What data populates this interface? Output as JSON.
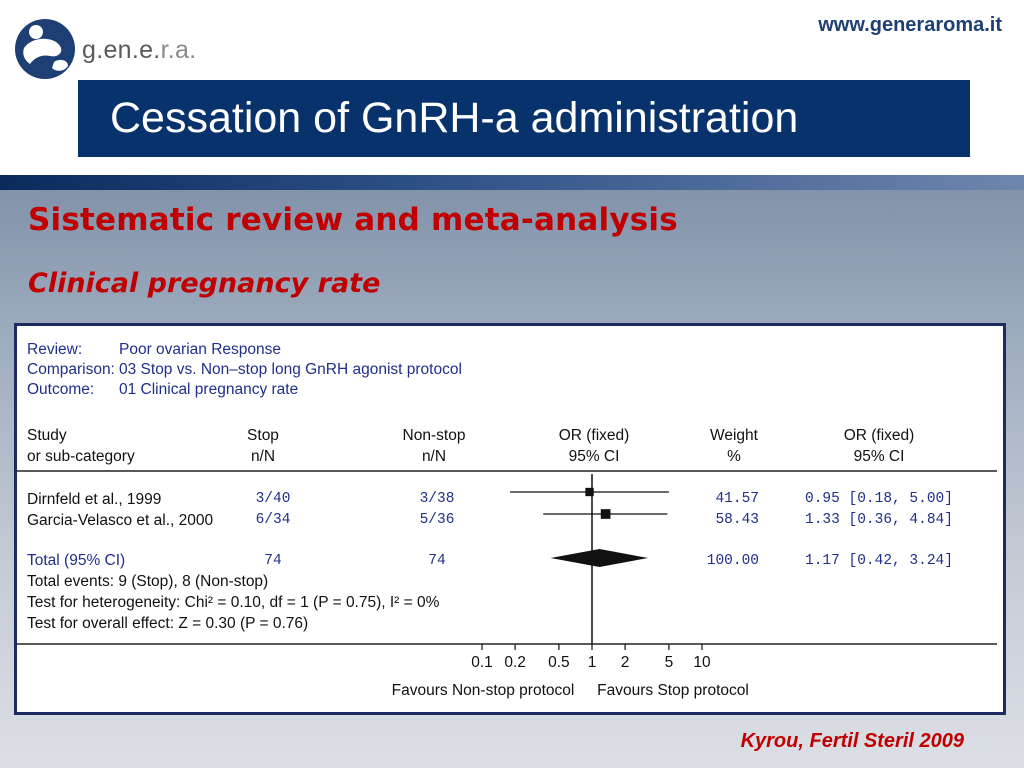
{
  "header": {
    "logo_text_main": "g.en.e.",
    "logo_text_tail": "r.a.",
    "site_url": "www.generaroma.it",
    "title": "Cessation of GnRH-a administration"
  },
  "subtitle": "Sistematic review and meta-analysis",
  "subtitle2": "Clinical pregnancy rate",
  "citation": "Kyrou, Fertil Steril 2009",
  "colors": {
    "title_bg": "#08326b",
    "accent_red": "#c00000",
    "plot_text": "#1f2f8a"
  },
  "review": {
    "labels": [
      "Review:",
      "Comparison:",
      "Outcome:"
    ],
    "values": [
      "Poor ovarian Response",
      "03 Stop vs. Non–stop long GnRH agonist protocol",
      "01 Clinical pregnancy rate"
    ]
  },
  "headers": {
    "study": [
      "Study",
      "or sub-category"
    ],
    "stop": [
      "Stop",
      "n/N"
    ],
    "nonstop": [
      "Non-stop",
      "n/N"
    ],
    "or_plot": [
      "OR (fixed)",
      "95% CI"
    ],
    "weight": [
      "Weight",
      "%"
    ],
    "or_text": [
      "OR (fixed)",
      "95% CI"
    ]
  },
  "chart_data": {
    "type": "forest",
    "x_scale": "log",
    "x_ticks": [
      "0.1",
      "0.2",
      "0.5",
      "1",
      "2",
      "5",
      "10"
    ],
    "x_range": [
      0.1,
      10
    ],
    "favours_left": "Favours Non-stop protocol",
    "favours_right": "Favours Stop protocol",
    "studies": [
      {
        "name": "Dirnfeld et al., 1999",
        "stop": "3/40",
        "nonstop": "3/38",
        "weight": "41.57",
        "or_text": "0.95 [0.18, 5.00]",
        "or": 0.95,
        "ci": [
          0.18,
          5.0
        ],
        "weight_value": 41.57
      },
      {
        "name": "Garcia-Velasco et al.,  2000",
        "stop": "6/34",
        "nonstop": "5/36",
        "weight": "58.43",
        "or_text": "1.33 [0.36, 4.84]",
        "or": 1.33,
        "ci": [
          0.36,
          4.84
        ],
        "weight_value": 58.43
      }
    ],
    "total": {
      "name": "Total (95% CI)",
      "stop": "74",
      "nonstop": "74",
      "weight": "100.00",
      "or_text": "1.17 [0.42, 3.24]",
      "or": 1.17,
      "ci": [
        0.42,
        3.24
      ]
    },
    "footer_lines": [
      "Total events: 9 (Stop), 8 (Non-stop)",
      "Test for heterogeneity: Chi² = 0.10, df = 1 (P = 0.75), I² = 0%",
      "Test for overall effect: Z = 0.30 (P = 0.76)"
    ]
  }
}
